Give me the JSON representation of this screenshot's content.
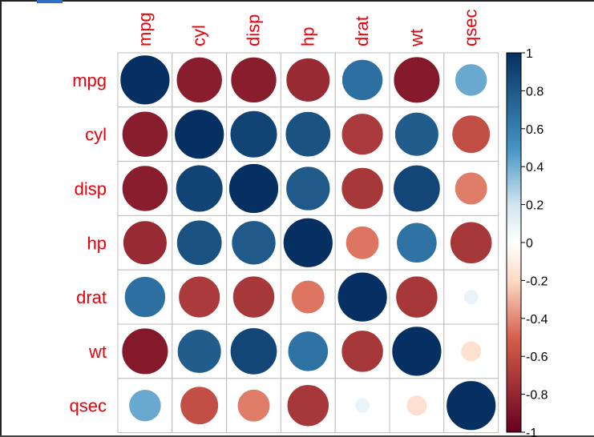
{
  "chart_data": {
    "type": "heatmap",
    "variables": [
      "mpg",
      "cyl",
      "disp",
      "hp",
      "drat",
      "wt",
      "qsec"
    ],
    "matrix": [
      [
        1.0,
        -0.85,
        -0.85,
        -0.78,
        0.68,
        -0.87,
        0.42
      ],
      [
        -0.85,
        1.0,
        0.9,
        0.83,
        -0.7,
        0.78,
        -0.59
      ],
      [
        -0.85,
        0.9,
        1.0,
        0.79,
        -0.71,
        0.89,
        -0.43
      ],
      [
        -0.78,
        0.83,
        0.79,
        1.0,
        -0.45,
        0.66,
        -0.71
      ],
      [
        0.68,
        -0.7,
        -0.71,
        -0.45,
        1.0,
        -0.71,
        0.09
      ],
      [
        -0.87,
        0.78,
        0.89,
        0.66,
        -0.71,
        1.0,
        -0.17
      ],
      [
        0.42,
        -0.59,
        -0.43,
        -0.71,
        0.09,
        -0.17,
        1.0
      ]
    ],
    "colorbar_ticks": [
      "1",
      "0.8",
      "0.6",
      "0.4",
      "0.2",
      "0",
      "-0.2",
      "-0.4",
      "-0.6",
      "-0.8",
      "-1"
    ],
    "color_range": [
      -1,
      1
    ],
    "colors": {
      "neg_strong": "#67001f",
      "neg_mid": "#d6604d",
      "neg_light": "#fddbc7",
      "zero": "#ffffff",
      "pos_light": "#d1e5f0",
      "pos_mid": "#4393c3",
      "pos_strong": "#053061",
      "label": "#e8000b",
      "grid": "#bdbdbd"
    }
  }
}
